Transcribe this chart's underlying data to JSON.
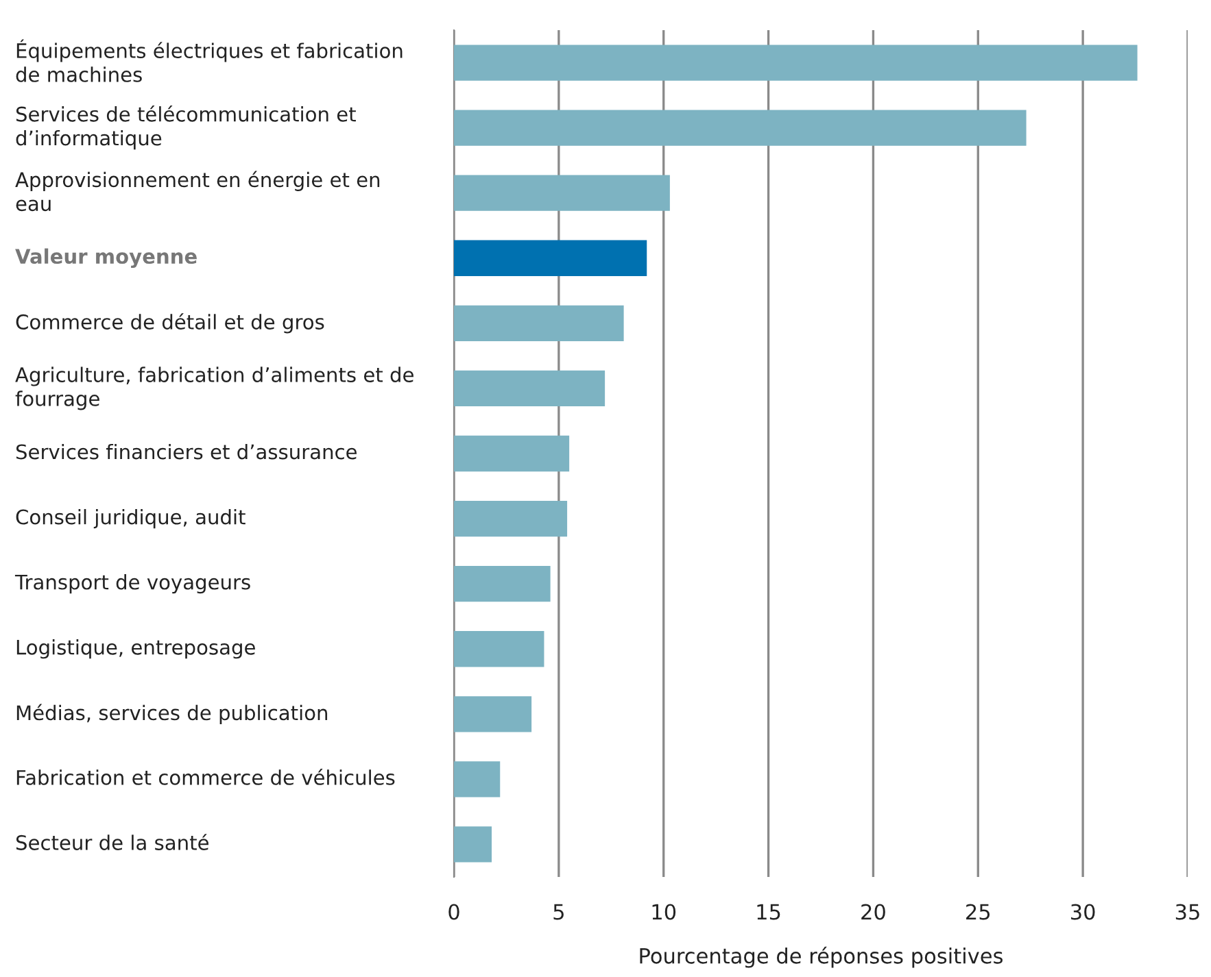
{
  "chart_data": {
    "type": "bar",
    "orientation": "horizontal",
    "categories": [
      "Équipements électriques et fabrication de machines",
      "Services de télécommunication et d’informatique",
      "Approvisionnement en énergie et en eau",
      "Valeur moyenne",
      "Commerce de détail et de gros",
      "Agriculture, fabrication d’aliments et de fourrage",
      "Services financiers et d’assurance",
      "Conseil juridique, audit",
      "Transport de voyageurs",
      "Logistique, entreposage",
      "Médias, services de publication",
      "Fabrication et commerce de véhicules",
      "Secteur de la santé"
    ],
    "values": [
      32.6,
      27.3,
      10.3,
      9.2,
      8.1,
      7.2,
      5.5,
      5.4,
      4.6,
      4.3,
      3.7,
      2.2,
      1.8
    ],
    "colors": [
      "#7db3c2",
      "#7db3c2",
      "#7db3c2",
      "#0071b0",
      "#7db3c2",
      "#7db3c2",
      "#7db3c2",
      "#7db3c2",
      "#7db3c2",
      "#7db3c2",
      "#7db3c2",
      "#7db3c2",
      "#7db3c2"
    ],
    "xlabel": "Pourcentage de réponses positives",
    "xlim": [
      0,
      35
    ],
    "xticks": [
      0,
      5,
      10,
      15,
      20,
      25,
      30,
      35
    ],
    "grid": "x"
  }
}
